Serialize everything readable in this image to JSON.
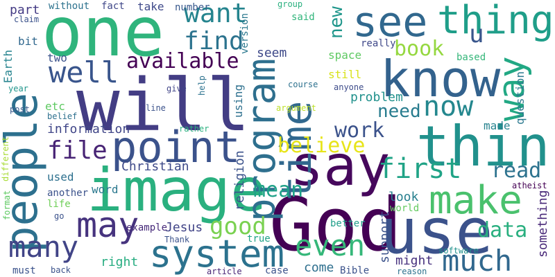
{
  "wordcloud": {
    "background": "#ffffff",
    "words": [
      {
        "text": "one",
        "color": "#2fb47c"
      },
      {
        "text": "will",
        "color": "#433d84"
      },
      {
        "text": "people",
        "color": "#2d708e"
      },
      {
        "text": "image",
        "color": "#2ab07f"
      },
      {
        "text": "God",
        "color": "#440154"
      },
      {
        "text": "say",
        "color": "#46085c"
      },
      {
        "text": "use",
        "color": "#3b528b"
      },
      {
        "text": "time",
        "color": "#31688e"
      },
      {
        "text": "think",
        "color": "#21918c"
      },
      {
        "text": "know",
        "color": "#33628d"
      },
      {
        "text": "program",
        "color": "#2e6f8e"
      },
      {
        "text": "point",
        "color": "#3b528b"
      },
      {
        "text": "see",
        "color": "#31688e"
      },
      {
        "text": "thing",
        "color": "#1f9e89"
      },
      {
        "text": "way",
        "color": "#22a884"
      },
      {
        "text": "make",
        "color": "#4ac16d"
      },
      {
        "text": "system",
        "color": "#2c728e"
      },
      {
        "text": "may",
        "color": "#46337e"
      },
      {
        "text": "well",
        "color": "#39558c"
      },
      {
        "text": "many",
        "color": "#414487"
      },
      {
        "text": "even",
        "color": "#35b779"
      },
      {
        "text": "much",
        "color": "#31688e"
      },
      {
        "text": "first",
        "color": "#20a386"
      },
      {
        "text": "want",
        "color": "#25848e"
      },
      {
        "text": "find",
        "color": "#2c738e"
      },
      {
        "text": "now",
        "color": "#24878e"
      },
      {
        "text": "believe",
        "color": "#e7e419"
      },
      {
        "text": "file",
        "color": "#482475"
      },
      {
        "text": "good",
        "color": "#7ad151"
      },
      {
        "text": "available",
        "color": "#440154"
      },
      {
        "text": "book",
        "color": "#95d840"
      },
      {
        "text": "mean",
        "color": "#1fa188"
      },
      {
        "text": "work",
        "color": "#3b528b"
      },
      {
        "text": "data",
        "color": "#29af7f"
      },
      {
        "text": "read",
        "color": "#2c728e"
      },
      {
        "text": "u",
        "color": "#39568c"
      },
      {
        "text": "new",
        "color": "#1f968b"
      },
      {
        "text": "need",
        "color": "#287c8e"
      },
      {
        "text": "information",
        "color": "#404688"
      },
      {
        "text": "Christian",
        "color": "#3e4a89"
      },
      {
        "text": "Jesus",
        "color": "#414487"
      },
      {
        "text": "religion",
        "color": "#3b528b"
      },
      {
        "text": "look",
        "color": "#277f8e"
      },
      {
        "text": "question",
        "color": "#2a788e"
      },
      {
        "text": "something",
        "color": "#482878"
      },
      {
        "text": "problem",
        "color": "#21918c"
      },
      {
        "text": "right",
        "color": "#27ad81"
      },
      {
        "text": "might",
        "color": "#46307e"
      },
      {
        "text": "come",
        "color": "#2e6f8e"
      },
      {
        "text": "part",
        "color": "#443b84"
      },
      {
        "text": "seem",
        "color": "#3e4989"
      },
      {
        "text": "etc",
        "color": "#5ec962"
      },
      {
        "text": "two",
        "color": "#3b528b"
      },
      {
        "text": "used",
        "color": "#2d708e"
      },
      {
        "text": "made",
        "color": "#26828e"
      },
      {
        "text": "support",
        "color": "#3b528b"
      },
      {
        "text": "take",
        "color": "#3e4989"
      },
      {
        "text": "Earth",
        "color": "#25838e"
      },
      {
        "text": "still",
        "color": "#d8e219"
      },
      {
        "text": "space",
        "color": "#5ec962"
      },
      {
        "text": "using",
        "color": "#2d708e"
      },
      {
        "text": "word",
        "color": "#2a788e"
      },
      {
        "text": "example",
        "color": "#472a7a"
      },
      {
        "text": "true",
        "color": "#20a386"
      },
      {
        "text": "bit",
        "color": "#31688e"
      },
      {
        "text": "another",
        "color": "#3b528b"
      },
      {
        "text": "life",
        "color": "#6ece58"
      },
      {
        "text": "world",
        "color": "#63cb5f"
      },
      {
        "text": "better",
        "color": "#1f9e89"
      },
      {
        "text": "atheist",
        "color": "#440154"
      },
      {
        "text": "Bible",
        "color": "#3b528b"
      },
      {
        "text": "number",
        "color": "#38588c"
      },
      {
        "text": "fact",
        "color": "#3f4788"
      },
      {
        "text": "without",
        "color": "#2c728e"
      },
      {
        "text": "claim",
        "color": "#3b528b"
      },
      {
        "text": "group",
        "color": "#2ab07f"
      },
      {
        "text": "said",
        "color": "#31b57b"
      },
      {
        "text": "version",
        "color": "#2a788e"
      },
      {
        "text": "really",
        "color": "#3f4889"
      },
      {
        "text": "based",
        "color": "#34b679"
      },
      {
        "text": "anyone",
        "color": "#3e4c8a"
      },
      {
        "text": "year",
        "color": "#1f958b"
      },
      {
        "text": "give",
        "color": "#414487"
      },
      {
        "text": "help",
        "color": "#2c728e"
      },
      {
        "text": "post",
        "color": "#38598c"
      },
      {
        "text": "belief",
        "color": "#2d708e"
      },
      {
        "text": "line",
        "color": "#3b528b"
      },
      {
        "text": "course",
        "color": "#2d718e"
      },
      {
        "text": "argument",
        "color": "#bddf26"
      },
      {
        "text": "rather",
        "color": "#2ab07f"
      },
      {
        "text": "different",
        "color": "#a8db34"
      },
      {
        "text": "format",
        "color": "#5ec962"
      },
      {
        "text": "go",
        "color": "#3b528b"
      },
      {
        "text": "Thank",
        "color": "#3b528b"
      },
      {
        "text": "must",
        "color": "#3b528b"
      },
      {
        "text": "back",
        "color": "#3b528b"
      },
      {
        "text": "article",
        "color": "#482475"
      },
      {
        "text": "case",
        "color": "#3b528b"
      },
      {
        "text": "reason",
        "color": "#2c728e"
      },
      {
        "text": "software",
        "color": "#21918c"
      }
    ]
  }
}
